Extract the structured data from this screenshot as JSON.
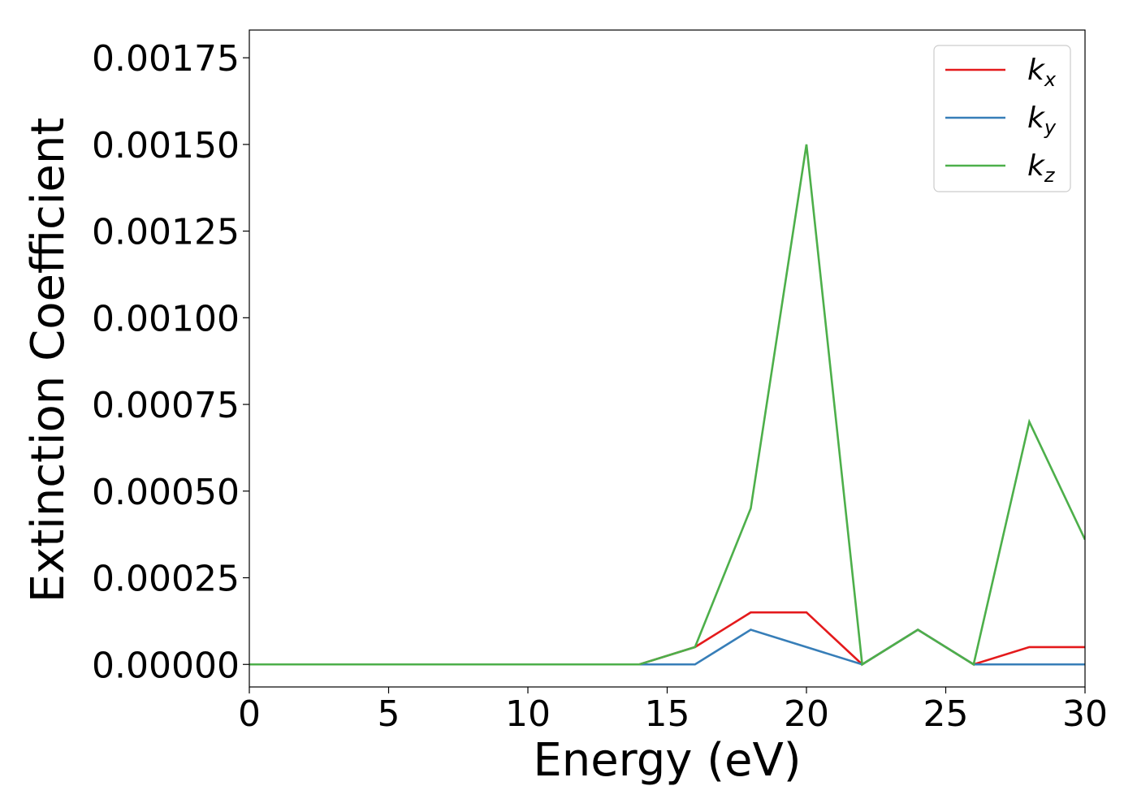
{
  "chart_data": {
    "type": "line",
    "title": "",
    "xlabel": "Energy (eV)",
    "ylabel": "Extinction Coefficient",
    "xlim": [
      0,
      30
    ],
    "ylim": [
      -6.5e-05,
      0.00183
    ],
    "xticks": [
      0,
      5,
      10,
      15,
      20,
      25,
      30
    ],
    "xtick_labels": [
      "0",
      "5",
      "10",
      "15",
      "20",
      "25",
      "30"
    ],
    "yticks": [
      0,
      0.00025,
      0.0005,
      0.00075,
      0.001,
      0.00125,
      0.0015,
      0.00175
    ],
    "ytick_labels": [
      "0.00000",
      "0.00025",
      "0.00050",
      "0.00075",
      "0.00100",
      "0.00125",
      "0.00150",
      "0.00175"
    ],
    "grid": false,
    "legend_position": "top-right",
    "x": [
      0,
      2,
      4,
      6,
      8,
      10,
      12,
      14,
      16,
      18,
      20,
      22,
      24,
      26,
      28,
      30
    ],
    "series": [
      {
        "name": "k",
        "subscript": "x",
        "color": "#e41a1c",
        "values": [
          0,
          0,
          0,
          0,
          0,
          0,
          0,
          0,
          5e-05,
          0.00015,
          0.00015,
          0,
          0.0001,
          0,
          5e-05,
          5e-05
        ]
      },
      {
        "name": "k",
        "subscript": "y",
        "color": "#377eb8",
        "values": [
          0,
          0,
          0,
          0,
          0,
          0,
          0,
          0,
          0,
          0.0001,
          5e-05,
          0,
          0.0001,
          0,
          0,
          0
        ]
      },
      {
        "name": "k",
        "subscript": "z",
        "color": "#4daf4a",
        "values": [
          0,
          0,
          0,
          0,
          0,
          0,
          0,
          0,
          5e-05,
          0.00045,
          0.0015,
          0,
          0.0001,
          0,
          0.0007,
          0.00036
        ]
      }
    ]
  }
}
